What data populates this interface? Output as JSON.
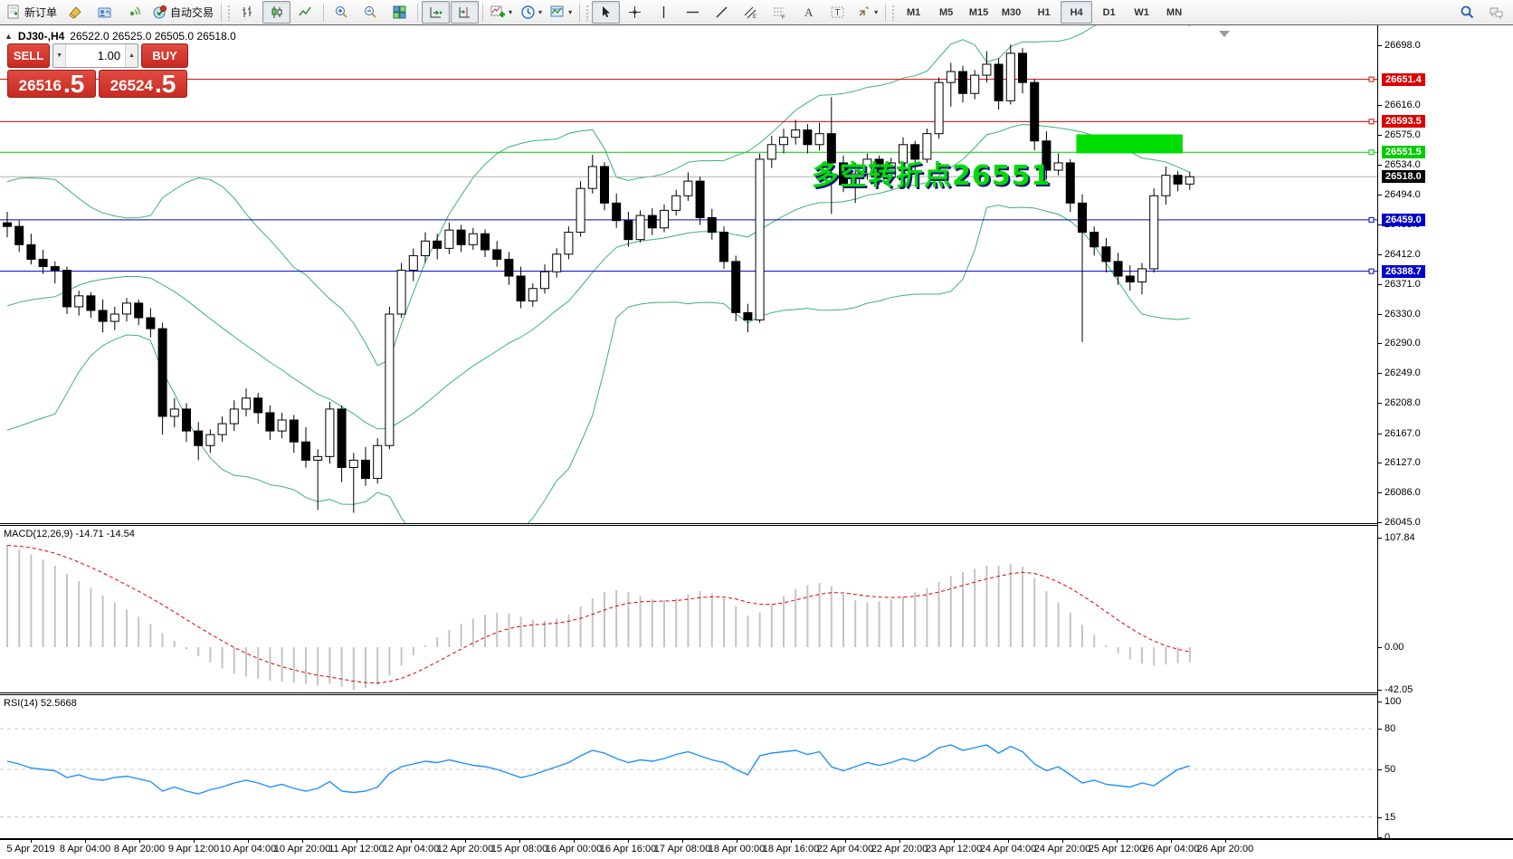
{
  "toolbar": {
    "new_order_label": "新订单",
    "auto_trading_label": "自动交易",
    "timeframes": [
      "M1",
      "M5",
      "M15",
      "M30",
      "H1",
      "H4",
      "D1",
      "W1",
      "MN"
    ],
    "active_timeframe": "H4",
    "channel_letter": "E",
    "fibo_letter": "F",
    "text_letter": "A",
    "label_letter": "T"
  },
  "chart_header": {
    "collapse_arrow": "▲",
    "symbol": "DJ30-,H4",
    "ohlc": "26522.0 26525.0 26505.0 26518.0"
  },
  "trade_panel": {
    "sell_label": "SELL",
    "buy_label": "BUY",
    "volume": "1.00",
    "sell_price_main": "26516",
    "sell_price_frac": ".5",
    "buy_price_main": "26524",
    "buy_price_frac": ".5"
  },
  "annotation": {
    "text": "多空转折点26551",
    "color": "#00dc00"
  },
  "price_axis": {
    "ticks": [
      "26698.0",
      "26616.0",
      "26575.0",
      "26534.0",
      "26494.0",
      "26453.0",
      "26412.0",
      "26371.0",
      "26330.0",
      "26290.0",
      "26249.0",
      "26208.0",
      "26167.0",
      "26127.0",
      "26086.0",
      "26045.0"
    ],
    "tags": [
      {
        "text": "26651.4",
        "bg": "#dd0000",
        "fg": "#ffffff"
      },
      {
        "text": "26593.5",
        "bg": "#dd0000",
        "fg": "#ffffff"
      },
      {
        "text": "26551.5",
        "bg": "#00cc00",
        "fg": "#ffffff"
      },
      {
        "text": "26518.0",
        "bg": "#000000",
        "fg": "#ffffff"
      },
      {
        "text": "26459.0",
        "bg": "#0000cc",
        "fg": "#ffffff"
      },
      {
        "text": "26388.7",
        "bg": "#0000cc",
        "fg": "#ffffff"
      }
    ]
  },
  "macd": {
    "label": "MACD(12,26,9) -14.71 -14.54",
    "axis_labels": [
      "107.84",
      "0.00",
      "-42.05"
    ],
    "axis_values": [
      107.84,
      0,
      -42.05
    ]
  },
  "rsi": {
    "label": "RSI(14) 52.5668",
    "axis_labels": [
      "100",
      "80",
      "50",
      "15",
      "0"
    ],
    "axis_values": [
      100,
      80,
      50,
      15,
      0
    ]
  },
  "time_axis": {
    "labels": [
      "5 Apr 2019",
      "8 Apr 04:00",
      "8 Apr 20:00",
      "9 Apr 12:00",
      "10 Apr 04:00",
      "10 Apr 20:00",
      "11 Apr 12:00",
      "12 Apr 04:00",
      "12 Apr 20:00",
      "15 Apr 08:00",
      "16 Apr 00:00",
      "16 Apr 16:00",
      "17 Apr 08:00",
      "18 Apr 00:00",
      "18 Apr 16:00",
      "22 Apr 04:00",
      "22 Apr 20:00",
      "23 Apr 12:00",
      "24 Apr 04:00",
      "24 Apr 20:00",
      "25 Apr 12:00",
      "26 Apr 04:00",
      "26 Apr 20:00"
    ]
  },
  "chart_data": {
    "type": "candlestick",
    "symbol": "DJ30-",
    "period": "H4",
    "price_range": [
      26045.0,
      26698.0
    ],
    "levels": [
      {
        "price": 26651.4,
        "color": "#dd0000"
      },
      {
        "price": 26593.5,
        "color": "#dd0000"
      },
      {
        "price": 26551.5,
        "color": "#00cc00"
      },
      {
        "price": 26459.0,
        "color": "#0000cc"
      },
      {
        "price": 26388.7,
        "color": "#0000cc"
      }
    ],
    "current_price": {
      "price": 26518.0,
      "color": "#b0b0b0"
    },
    "highlight_rect": {
      "bar_start": 89.5,
      "bar_end": 98.4,
      "price_top": 26576,
      "price_bottom": 26550,
      "color": "#00dd00"
    },
    "bands_color": "#3cb371",
    "pre_closes": [
      26180,
      26200,
      26230,
      26260,
      26290,
      26310,
      26330,
      26350,
      26370,
      26390,
      26400,
      26410,
      26420,
      26430,
      26440
    ],
    "candles": [
      [
        26455,
        26470,
        26435,
        26450
      ],
      [
        26450,
        26458,
        26415,
        26425
      ],
      [
        26425,
        26440,
        26398,
        26405
      ],
      [
        26405,
        26418,
        26385,
        26395
      ],
      [
        26395,
        26402,
        26372,
        26390
      ],
      [
        26390,
        26395,
        26330,
        26340
      ],
      [
        26340,
        26362,
        26328,
        26355
      ],
      [
        26355,
        26360,
        26325,
        26335
      ],
      [
        26335,
        26350,
        26305,
        26320
      ],
      [
        26320,
        26340,
        26308,
        26330
      ],
      [
        26330,
        26352,
        26320,
        26345
      ],
      [
        26345,
        26350,
        26315,
        26325
      ],
      [
        26325,
        26338,
        26298,
        26310
      ],
      [
        26310,
        26318,
        26165,
        26190
      ],
      [
        26190,
        26215,
        26175,
        26200
      ],
      [
        26200,
        26208,
        26155,
        26170
      ],
      [
        26170,
        26182,
        26130,
        26150
      ],
      [
        26150,
        26172,
        26140,
        26165
      ],
      [
        26165,
        26190,
        26155,
        26180
      ],
      [
        26180,
        26212,
        26170,
        26200
      ],
      [
        26200,
        26228,
        26190,
        26215
      ],
      [
        26215,
        26222,
        26180,
        26195
      ],
      [
        26195,
        26205,
        26158,
        26170
      ],
      [
        26170,
        26195,
        26160,
        26185
      ],
      [
        26185,
        26192,
        26140,
        26155
      ],
      [
        26155,
        26175,
        26120,
        26130
      ],
      [
        26130,
        26145,
        26062,
        26135
      ],
      [
        26135,
        26210,
        26125,
        26200
      ],
      [
        26200,
        26205,
        26100,
        26120
      ],
      [
        26120,
        26140,
        26058,
        26130
      ],
      [
        26130,
        26148,
        26095,
        26105
      ],
      [
        26105,
        26160,
        26098,
        26150
      ],
      [
        26150,
        26340,
        26145,
        26330
      ],
      [
        26330,
        26400,
        26325,
        26390
      ],
      [
        26390,
        26420,
        26375,
        26410
      ],
      [
        26410,
        26442,
        26400,
        26430
      ],
      [
        26430,
        26440,
        26405,
        26420
      ],
      [
        26420,
        26455,
        26412,
        26445
      ],
      [
        26445,
        26452,
        26415,
        26425
      ],
      [
        26425,
        26448,
        26418,
        26440
      ],
      [
        26440,
        26446,
        26408,
        26418
      ],
      [
        26418,
        26430,
        26395,
        26405
      ],
      [
        26405,
        26415,
        26370,
        26382
      ],
      [
        26382,
        26395,
        26338,
        26348
      ],
      [
        26348,
        26372,
        26340,
        26365
      ],
      [
        26365,
        26398,
        26358,
        26388
      ],
      [
        26388,
        26420,
        26380,
        26412
      ],
      [
        26412,
        26450,
        26405,
        26442
      ],
      [
        26442,
        26512,
        26436,
        26502
      ],
      [
        26502,
        26548,
        26495,
        26532
      ],
      [
        26532,
        26538,
        26472,
        26482
      ],
      [
        26482,
        26495,
        26448,
        26458
      ],
      [
        26458,
        26470,
        26422,
        26432
      ],
      [
        26432,
        26472,
        26428,
        26465
      ],
      [
        26465,
        26475,
        26438,
        26448
      ],
      [
        26448,
        26480,
        26442,
        26472
      ],
      [
        26472,
        26500,
        26465,
        26492
      ],
      [
        26492,
        26524,
        26485,
        26512
      ],
      [
        26512,
        26518,
        26452,
        26462
      ],
      [
        26462,
        26474,
        26432,
        26442
      ],
      [
        26442,
        26450,
        26392,
        26402
      ],
      [
        26402,
        26410,
        26320,
        26332
      ],
      [
        26332,
        26344,
        26305,
        26322
      ],
      [
        26322,
        26550,
        26318,
        26542
      ],
      [
        26542,
        26574,
        26530,
        26562
      ],
      [
        26562,
        26584,
        26550,
        26572
      ],
      [
        26572,
        26596,
        26562,
        26582
      ],
      [
        26582,
        26590,
        26550,
        26562
      ],
      [
        26562,
        26592,
        26554,
        26577
      ],
      [
        26577,
        26627,
        26467,
        26537
      ],
      [
        26537,
        26547,
        26497,
        26507
      ],
      [
        26507,
        26532,
        26482,
        26522
      ],
      [
        26522,
        26550,
        26514,
        26542
      ],
      [
        26542,
        26547,
        26507,
        26517
      ],
      [
        26517,
        26544,
        26510,
        26537
      ],
      [
        26537,
        26572,
        26530,
        26562
      ],
      [
        26562,
        26567,
        26527,
        26542
      ],
      [
        26542,
        26584,
        26537,
        26577
      ],
      [
        26577,
        26654,
        26570,
        26647
      ],
      [
        26647,
        26674,
        26614,
        26662
      ],
      [
        26662,
        26670,
        26620,
        26632
      ],
      [
        26632,
        26664,
        26624,
        26657
      ],
      [
        26657,
        26690,
        26647,
        26672
      ],
      [
        26672,
        26680,
        26610,
        26622
      ],
      [
        26622,
        26699,
        26617,
        26687
      ],
      [
        26687,
        26694,
        26632,
        26647
      ],
      [
        26647,
        26652,
        26554,
        26567
      ],
      [
        26567,
        26580,
        26514,
        26527
      ],
      [
        26527,
        26550,
        26520,
        26537
      ],
      [
        26537,
        26542,
        26470,
        26482
      ],
      [
        26482,
        26494,
        26292,
        26442
      ],
      [
        26442,
        26450,
        26410,
        26422
      ],
      [
        26422,
        26434,
        26387,
        26402
      ],
      [
        26402,
        26414,
        26370,
        26382
      ],
      [
        26382,
        26397,
        26362,
        26374
      ],
      [
        26374,
        26400,
        26357,
        26392
      ],
      [
        26392,
        26502,
        26387,
        26492
      ],
      [
        26492,
        26532,
        26480,
        26520
      ],
      [
        26520,
        26526,
        26498,
        26508
      ],
      [
        26508,
        26525,
        26500,
        26518
      ]
    ],
    "macd_main": [
      100,
      96,
      91,
      86,
      80,
      72,
      65,
      58,
      51,
      44,
      37,
      30,
      23,
      14,
      6,
      -2,
      -9,
      -15,
      -21,
      -26,
      -29,
      -31,
      -33,
      -34,
      -35,
      -36,
      -38,
      -36,
      -39,
      -42,
      -40,
      -37,
      -28,
      -18,
      -8,
      2,
      10,
      17,
      23,
      28,
      32,
      34,
      33,
      30,
      27,
      26,
      28,
      32,
      40,
      48,
      54,
      56,
      54,
      50,
      47,
      46,
      48,
      52,
      55,
      53,
      48,
      40,
      31,
      34,
      42,
      50,
      57,
      61,
      63,
      60,
      52,
      46,
      44,
      45,
      47,
      50,
      54,
      58,
      64,
      70,
      74,
      77,
      80,
      80,
      82,
      79,
      68,
      55,
      44,
      34,
      22,
      12,
      2,
      -6,
      -12,
      -16,
      -18,
      -17,
      -15.5,
      -14.71
    ],
    "macd_range": [
      -42.05,
      107.84
    ],
    "rsi_values": [
      56,
      54,
      51,
      50,
      49,
      44,
      46,
      43,
      42,
      44,
      45,
      43,
      41,
      34,
      37,
      34,
      32,
      35,
      37,
      40,
      42,
      40,
      37,
      39,
      36,
      34,
      36,
      41,
      34,
      33,
      34,
      37,
      47,
      52,
      54,
      56,
      55,
      57,
      55,
      53,
      52,
      50,
      47,
      44,
      46,
      49,
      52,
      55,
      60,
      64,
      62,
      58,
      55,
      57,
      56,
      58,
      61,
      63,
      60,
      57,
      55,
      50,
      46,
      60,
      62,
      63,
      64,
      61,
      63,
      52,
      49,
      52,
      55,
      53,
      55,
      58,
      56,
      60,
      66,
      68,
      64,
      66,
      68,
      62,
      67,
      63,
      54,
      49,
      52,
      46,
      40,
      42,
      39,
      38,
      37,
      40,
      38,
      44,
      50,
      52.57
    ],
    "rsi_dashed_levels": [
      80,
      50,
      15
    ]
  }
}
